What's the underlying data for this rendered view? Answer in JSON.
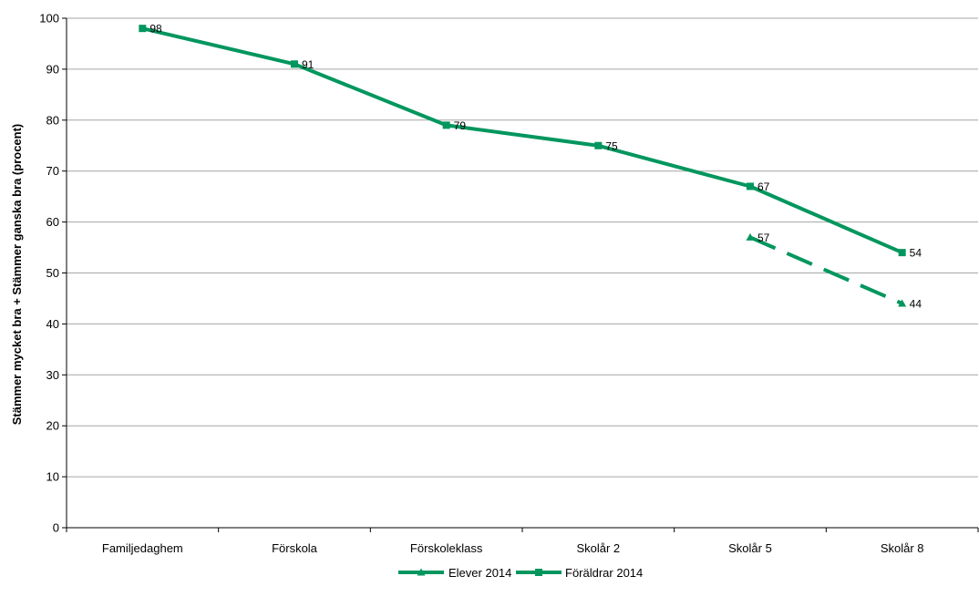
{
  "chart_data": {
    "type": "line",
    "title": "",
    "xlabel": "",
    "ylabel": "Stämmer mycket bra + Stämmer ganska bra (procent)",
    "ylim": [
      0,
      100
    ],
    "yticks": [
      0,
      10,
      20,
      30,
      40,
      50,
      60,
      70,
      80,
      90,
      100
    ],
    "grid": true,
    "legend_position": "bottom",
    "categories": [
      "Familjedaghem",
      "Förskola",
      "Förskoleklass",
      "Skolår 2",
      "Skolår 5",
      "Skolår 8"
    ],
    "series": [
      {
        "name": "Elever 2014",
        "values": [
          null,
          null,
          null,
          null,
          57,
          44
        ],
        "labels": [
          "",
          "",
          "",
          "",
          "57",
          "44"
        ],
        "color": "#00965e",
        "line_style": "dashed",
        "marker": "triangle"
      },
      {
        "name": "Föräldrar 2014",
        "values": [
          98,
          91,
          79,
          75,
          67,
          54
        ],
        "labels": [
          "98",
          "91",
          "79",
          "75",
          "67",
          "54"
        ],
        "color": "#00965e",
        "line_style": "solid",
        "marker": "square"
      }
    ]
  }
}
